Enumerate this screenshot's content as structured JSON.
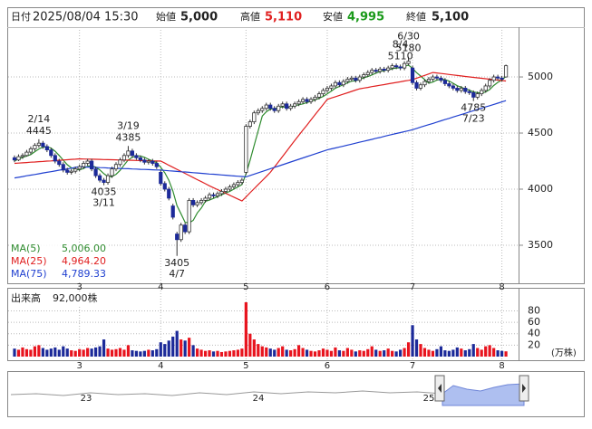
{
  "header": {
    "date_label": "日付",
    "datetime": "2025/08/04 15:30",
    "open_label": "始値",
    "open": "5,000",
    "high_label": "高値",
    "high": "5,110",
    "low_label": "安値",
    "low": "4,995",
    "close_label": "終値",
    "close": "5,100"
  },
  "chart_data": {
    "type": "candlestick",
    "categories": [
      null,
      null,
      null,
      null,
      null,
      null,
      null,
      null,
      null,
      null,
      null,
      null,
      null,
      null,
      null,
      null,
      "3",
      null,
      null,
      null,
      null,
      null,
      null,
      null,
      null,
      null,
      null,
      null,
      null,
      null,
      null,
      null,
      null,
      null,
      null,
      null,
      "4",
      null,
      null,
      null,
      null,
      null,
      null,
      null,
      null,
      null,
      null,
      null,
      null,
      null,
      null,
      null,
      null,
      null,
      null,
      null,
      null,
      "5",
      null,
      null,
      null,
      null,
      null,
      null,
      null,
      null,
      null,
      null,
      null,
      null,
      null,
      null,
      null,
      null,
      null,
      null,
      null,
      "6",
      null,
      null,
      null,
      null,
      null,
      null,
      null,
      null,
      null,
      null,
      null,
      null,
      null,
      null,
      null,
      null,
      null,
      null,
      null,
      null,
      "7",
      null,
      null,
      null,
      null,
      null,
      null,
      null,
      null,
      null,
      null,
      null,
      null,
      null,
      null,
      null,
      null,
      null,
      null,
      null,
      null,
      null,
      "8",
      null
    ],
    "ohlc": [
      [
        4280,
        4300,
        4240,
        4260
      ],
      [
        4260,
        4310,
        4250,
        4290
      ],
      [
        4290,
        4320,
        4270,
        4300
      ],
      [
        4300,
        4350,
        4290,
        4330
      ],
      [
        4330,
        4380,
        4310,
        4360
      ],
      [
        4360,
        4410,
        4340,
        4390
      ],
      [
        4390,
        4445,
        4370,
        4410
      ],
      [
        4410,
        4430,
        4360,
        4380
      ],
      [
        4380,
        4400,
        4330,
        4350
      ],
      [
        4350,
        4370,
        4280,
        4300
      ],
      [
        4300,
        4320,
        4230,
        4250
      ],
      [
        4250,
        4270,
        4200,
        4220
      ],
      [
        4220,
        4240,
        4150,
        4170
      ],
      [
        4170,
        4190,
        4130,
        4150
      ],
      [
        4150,
        4180,
        4130,
        4160
      ],
      [
        4160,
        4200,
        4140,
        4180
      ],
      [
        4180,
        4220,
        4160,
        4200
      ],
      [
        4200,
        4250,
        4180,
        4230
      ],
      [
        4230,
        4270,
        4210,
        4250
      ],
      [
        4250,
        4270,
        4160,
        4180
      ],
      [
        4180,
        4200,
        4100,
        4120
      ],
      [
        4120,
        4140,
        4060,
        4080
      ],
      [
        4080,
        4100,
        4035,
        4060
      ],
      [
        4060,
        4140,
        4040,
        4120
      ],
      [
        4120,
        4200,
        4100,
        4180
      ],
      [
        4180,
        4240,
        4160,
        4220
      ],
      [
        4220,
        4280,
        4200,
        4260
      ],
      [
        4260,
        4320,
        4240,
        4300
      ],
      [
        4300,
        4385,
        4280,
        4340
      ],
      [
        4340,
        4360,
        4280,
        4300
      ],
      [
        4300,
        4320,
        4260,
        4280
      ],
      [
        4280,
        4300,
        4240,
        4260
      ],
      [
        4260,
        4280,
        4220,
        4240
      ],
      [
        4240,
        4270,
        4220,
        4250
      ],
      [
        4250,
        4270,
        4210,
        4230
      ],
      [
        4230,
        4250,
        4180,
        4200
      ],
      [
        4150,
        4170,
        4030,
        4050
      ],
      [
        4050,
        4070,
        3980,
        4000
      ],
      [
        4000,
        4020,
        3900,
        3920
      ],
      [
        3850,
        3870,
        3730,
        3750
      ],
      [
        3600,
        3620,
        3405,
        3550
      ],
      [
        3550,
        3700,
        3530,
        3680
      ],
      [
        3680,
        3700,
        3600,
        3620
      ],
      [
        3620,
        3920,
        3600,
        3900
      ],
      [
        3900,
        3920,
        3840,
        3860
      ],
      [
        3860,
        3900,
        3840,
        3880
      ],
      [
        3880,
        3920,
        3860,
        3900
      ],
      [
        3900,
        3940,
        3880,
        3920
      ],
      [
        3920,
        3970,
        3900,
        3950
      ],
      [
        3950,
        3970,
        3920,
        3940
      ],
      [
        3940,
        3980,
        3920,
        3960
      ],
      [
        3960,
        4000,
        3940,
        3980
      ],
      [
        3980,
        4020,
        3960,
        4000
      ],
      [
        4000,
        4040,
        3980,
        4020
      ],
      [
        4020,
        4060,
        4000,
        4040
      ],
      [
        4040,
        4080,
        4020,
        4060
      ],
      [
        4060,
        4100,
        4040,
        4080
      ],
      [
        4150,
        4580,
        4130,
        4560
      ],
      [
        4560,
        4620,
        4540,
        4600
      ],
      [
        4600,
        4700,
        4580,
        4680
      ],
      [
        4680,
        4720,
        4660,
        4700
      ],
      [
        4700,
        4740,
        4680,
        4720
      ],
      [
        4720,
        4770,
        4700,
        4750
      ],
      [
        4750,
        4770,
        4700,
        4720
      ],
      [
        4720,
        4740,
        4680,
        4700
      ],
      [
        4700,
        4760,
        4680,
        4740
      ],
      [
        4740,
        4780,
        4720,
        4760
      ],
      [
        4760,
        4780,
        4700,
        4720
      ],
      [
        4720,
        4760,
        4700,
        4740
      ],
      [
        4740,
        4780,
        4720,
        4760
      ],
      [
        4760,
        4800,
        4740,
        4780
      ],
      [
        4780,
        4820,
        4760,
        4800
      ],
      [
        4800,
        4820,
        4760,
        4780
      ],
      [
        4780,
        4820,
        4760,
        4800
      ],
      [
        4800,
        4840,
        4780,
        4820
      ],
      [
        4820,
        4870,
        4800,
        4850
      ],
      [
        4850,
        4900,
        4830,
        4880
      ],
      [
        4880,
        4920,
        4860,
        4900
      ],
      [
        4900,
        4940,
        4880,
        4920
      ],
      [
        4920,
        4970,
        4900,
        4950
      ],
      [
        4950,
        4970,
        4910,
        4930
      ],
      [
        4930,
        4980,
        4910,
        4960
      ],
      [
        4960,
        5000,
        4940,
        4980
      ],
      [
        4980,
        5010,
        4960,
        4990
      ],
      [
        4990,
        5010,
        4950,
        4970
      ],
      [
        4970,
        5020,
        4950,
        5000
      ],
      [
        5000,
        5040,
        4980,
        5020
      ],
      [
        5020,
        5060,
        5000,
        5040
      ],
      [
        5040,
        5080,
        5020,
        5060
      ],
      [
        5060,
        5080,
        5030,
        5050
      ],
      [
        5050,
        5090,
        5030,
        5070
      ],
      [
        5070,
        5090,
        5040,
        5060
      ],
      [
        5060,
        5100,
        5040,
        5080
      ],
      [
        5080,
        5120,
        5060,
        5100
      ],
      [
        5100,
        5120,
        5070,
        5090
      ],
      [
        5090,
        5110,
        5060,
        5080
      ],
      [
        5080,
        5140,
        5060,
        5120
      ],
      [
        5120,
        5180,
        5100,
        5140
      ],
      [
        5080,
        5100,
        4930,
        4950
      ],
      [
        4950,
        4970,
        4880,
        4900
      ],
      [
        4900,
        4950,
        4880,
        4930
      ],
      [
        4930,
        4980,
        4910,
        4960
      ],
      [
        4960,
        5000,
        4940,
        4980
      ],
      [
        4980,
        5020,
        4960,
        5000
      ],
      [
        5000,
        5020,
        4970,
        4990
      ],
      [
        4990,
        5010,
        4950,
        4970
      ],
      [
        4970,
        4990,
        4920,
        4940
      ],
      [
        4940,
        4960,
        4900,
        4920
      ],
      [
        4920,
        4940,
        4880,
        4900
      ],
      [
        4900,
        4920,
        4860,
        4880
      ],
      [
        4880,
        4920,
        4860,
        4900
      ],
      [
        4900,
        4920,
        4850,
        4870
      ],
      [
        4870,
        4890,
        4840,
        4860
      ],
      [
        4860,
        4880,
        4785,
        4820
      ],
      [
        4820,
        4870,
        4800,
        4850
      ],
      [
        4850,
        4900,
        4830,
        4880
      ],
      [
        4880,
        4940,
        4860,
        4920
      ],
      [
        4920,
        4990,
        4900,
        4970
      ],
      [
        4970,
        5020,
        4950,
        5000
      ],
      [
        5000,
        5020,
        4970,
        4990
      ],
      [
        4990,
        5010,
        4960,
        4980
      ],
      [
        5000,
        5110,
        4995,
        5100
      ]
    ],
    "colors": {
      "up": "#ffffff",
      "down": "#1c2a99",
      "edge": "#333333",
      "volume_up": "#e8141e",
      "volume_down": "#1c2a99"
    },
    "ylim": [
      3161,
      5444
    ],
    "yticks": [
      3500,
      4000,
      4500,
      5000
    ],
    "grid": true,
    "series": [
      {
        "name": "MA(5)",
        "color": "#2e8b2e",
        "last_label": "5,006.00",
        "values": [
          4250,
          4270,
          4283,
          4295,
          4308,
          4334,
          4358,
          4374,
          4378,
          4366,
          4338,
          4300,
          4258,
          4218,
          4190,
          4176,
          4172,
          4184,
          4204,
          4208,
          4196,
          4172,
          4138,
          4112,
          4112,
          4132,
          4168,
          4216,
          4260,
          4284,
          4296,
          4296,
          4284,
          4266,
          4252,
          4236,
          4194,
          4146,
          4080,
          3984,
          3854,
          3780,
          3704,
          3700,
          3722,
          3788,
          3832,
          3892,
          3902,
          3918,
          3934,
          3950,
          3966,
          3980,
          4000,
          4020,
          4040,
          4136,
          4256,
          4388,
          4520,
          4652,
          4690,
          4714,
          4718,
          4726,
          4734,
          4728,
          4732,
          4744,
          4752,
          4760,
          4772,
          4784,
          4796,
          4810,
          4826,
          4850,
          4874,
          4900,
          4916,
          4932,
          4948,
          4962,
          4966,
          4980,
          4992,
          5004,
          5018,
          5034,
          5048,
          5056,
          5064,
          5072,
          5080,
          5082,
          5094,
          5106,
          5076,
          5038,
          5008,
          4976,
          4944,
          4954,
          4972,
          4980,
          4976,
          4964,
          4944,
          4922,
          4908,
          4894,
          4882,
          4866,
          4860,
          4856,
          4866,
          4888,
          4924,
          4952,
          4972,
          5006
        ]
      },
      {
        "name": "MA(25)",
        "color": "#e02020",
        "last_label": "4,964.20",
        "values": [
          4230,
          4232,
          4235,
          4237,
          4240,
          4242,
          4245,
          4247,
          4250,
          4252,
          4255,
          4257,
          4260,
          4262,
          4265,
          4267,
          4270,
          4269,
          4268,
          4267,
          4266,
          4265,
          4264,
          4263,
          4262,
          4261,
          4260,
          4259,
          4258,
          4257,
          4256,
          4255,
          4254,
          4253,
          4252,
          4251,
          4250,
          4232,
          4213,
          4195,
          4177,
          4158,
          4140,
          4122,
          4103,
          4085,
          4067,
          4048,
          4030,
          4013,
          3996,
          3979,
          3963,
          3946,
          3929,
          3912,
          3895,
          3931,
          3968,
          4004,
          4041,
          4077,
          4114,
          4150,
          4197,
          4244,
          4291,
          4339,
          4386,
          4433,
          4480,
          4526,
          4571,
          4617,
          4663,
          4709,
          4754,
          4800,
          4812,
          4824,
          4836,
          4848,
          4859,
          4871,
          4883,
          4895,
          4901,
          4907,
          4914,
          4920,
          4926,
          4932,
          4939,
          4945,
          4951,
          4957,
          4964,
          4970,
          4976,
          4989,
          5002,
          5014,
          5027,
          5040,
          5036,
          5031,
          5027,
          5022,
          5018,
          5013,
          5009,
          5004,
          5000,
          4996,
          4992,
          4988,
          4984,
          4980,
          4976,
          4972,
          4968,
          4964.2
        ]
      },
      {
        "name": "MA(75)",
        "color": "#2040d0",
        "last_label": "4,789.33",
        "values": [
          4100,
          4106,
          4112,
          4119,
          4125,
          4131,
          4137,
          4144,
          4150,
          4156,
          4162,
          4169,
          4175,
          4181,
          4187,
          4194,
          4200,
          4198,
          4197,
          4195,
          4194,
          4192,
          4191,
          4189,
          4188,
          4186,
          4185,
          4183,
          4182,
          4180,
          4179,
          4177,
          4176,
          4174,
          4173,
          4171,
          4170,
          4167,
          4164,
          4161,
          4158,
          4155,
          4153,
          4150,
          4147,
          4144,
          4141,
          4138,
          4135,
          4133,
          4130,
          4127,
          4124,
          4121,
          4118,
          4115,
          4113,
          4110,
          4122,
          4134,
          4146,
          4158,
          4170,
          4182,
          4194,
          4206,
          4218,
          4230,
          4242,
          4254,
          4266,
          4278,
          4290,
          4302,
          4314,
          4326,
          4338,
          4350,
          4359,
          4367,
          4376,
          4384,
          4393,
          4401,
          4410,
          4419,
          4427,
          4436,
          4444,
          4453,
          4461,
          4470,
          4479,
          4487,
          4496,
          4504,
          4513,
          4521,
          4530,
          4541,
          4553,
          4564,
          4575,
          4586,
          4598,
          4609,
          4620,
          4631,
          4643,
          4654,
          4665,
          4676,
          4688,
          4699,
          4710,
          4721,
          4733,
          4744,
          4755,
          4766,
          4778,
          4789.33
        ]
      }
    ],
    "annotations": [
      {
        "date": "2/14",
        "value": 4445
      },
      {
        "date": "3/11",
        "value": 4035
      },
      {
        "date": "3/19",
        "value": 4385
      },
      {
        "date": "4/7",
        "value": 3405
      },
      {
        "date": "6/30",
        "value": 5180
      },
      {
        "date": "7/23",
        "value": 4785
      },
      {
        "date": "8/4",
        "value": 5110
      }
    ],
    "volume": {
      "title": "出来高",
      "latest": "92,000株",
      "unit": "(万株)",
      "ylim": [
        0,
        114
      ],
      "yticks": [
        20,
        40,
        60,
        80
      ],
      "values": [
        14,
        12,
        16,
        13,
        12,
        18,
        20,
        15,
        12,
        14,
        16,
        12,
        18,
        14,
        11,
        10,
        13,
        12,
        15,
        14,
        16,
        18,
        30,
        14,
        12,
        13,
        15,
        12,
        20,
        11,
        10,
        9,
        10,
        12,
        11,
        13,
        25,
        22,
        28,
        35,
        45,
        30,
        28,
        33,
        20,
        14,
        12,
        10,
        11,
        9,
        10,
        8,
        9,
        10,
        11,
        12,
        14,
        95,
        40,
        30,
        22,
        18,
        16,
        14,
        12,
        15,
        18,
        12,
        11,
        13,
        20,
        15,
        12,
        10,
        9,
        11,
        14,
        12,
        10,
        16,
        11,
        10,
        15,
        12,
        9,
        11,
        10,
        13,
        18,
        12,
        10,
        11,
        14,
        10,
        9,
        12,
        15,
        25,
        55,
        30,
        22,
        15,
        12,
        10,
        13,
        18,
        11,
        10,
        12,
        16,
        14,
        11,
        13,
        22,
        15,
        12,
        18,
        20,
        15,
        11,
        10,
        9.2
      ]
    },
    "navigator": {
      "labels": [
        "23",
        "24",
        "25"
      ]
    }
  }
}
